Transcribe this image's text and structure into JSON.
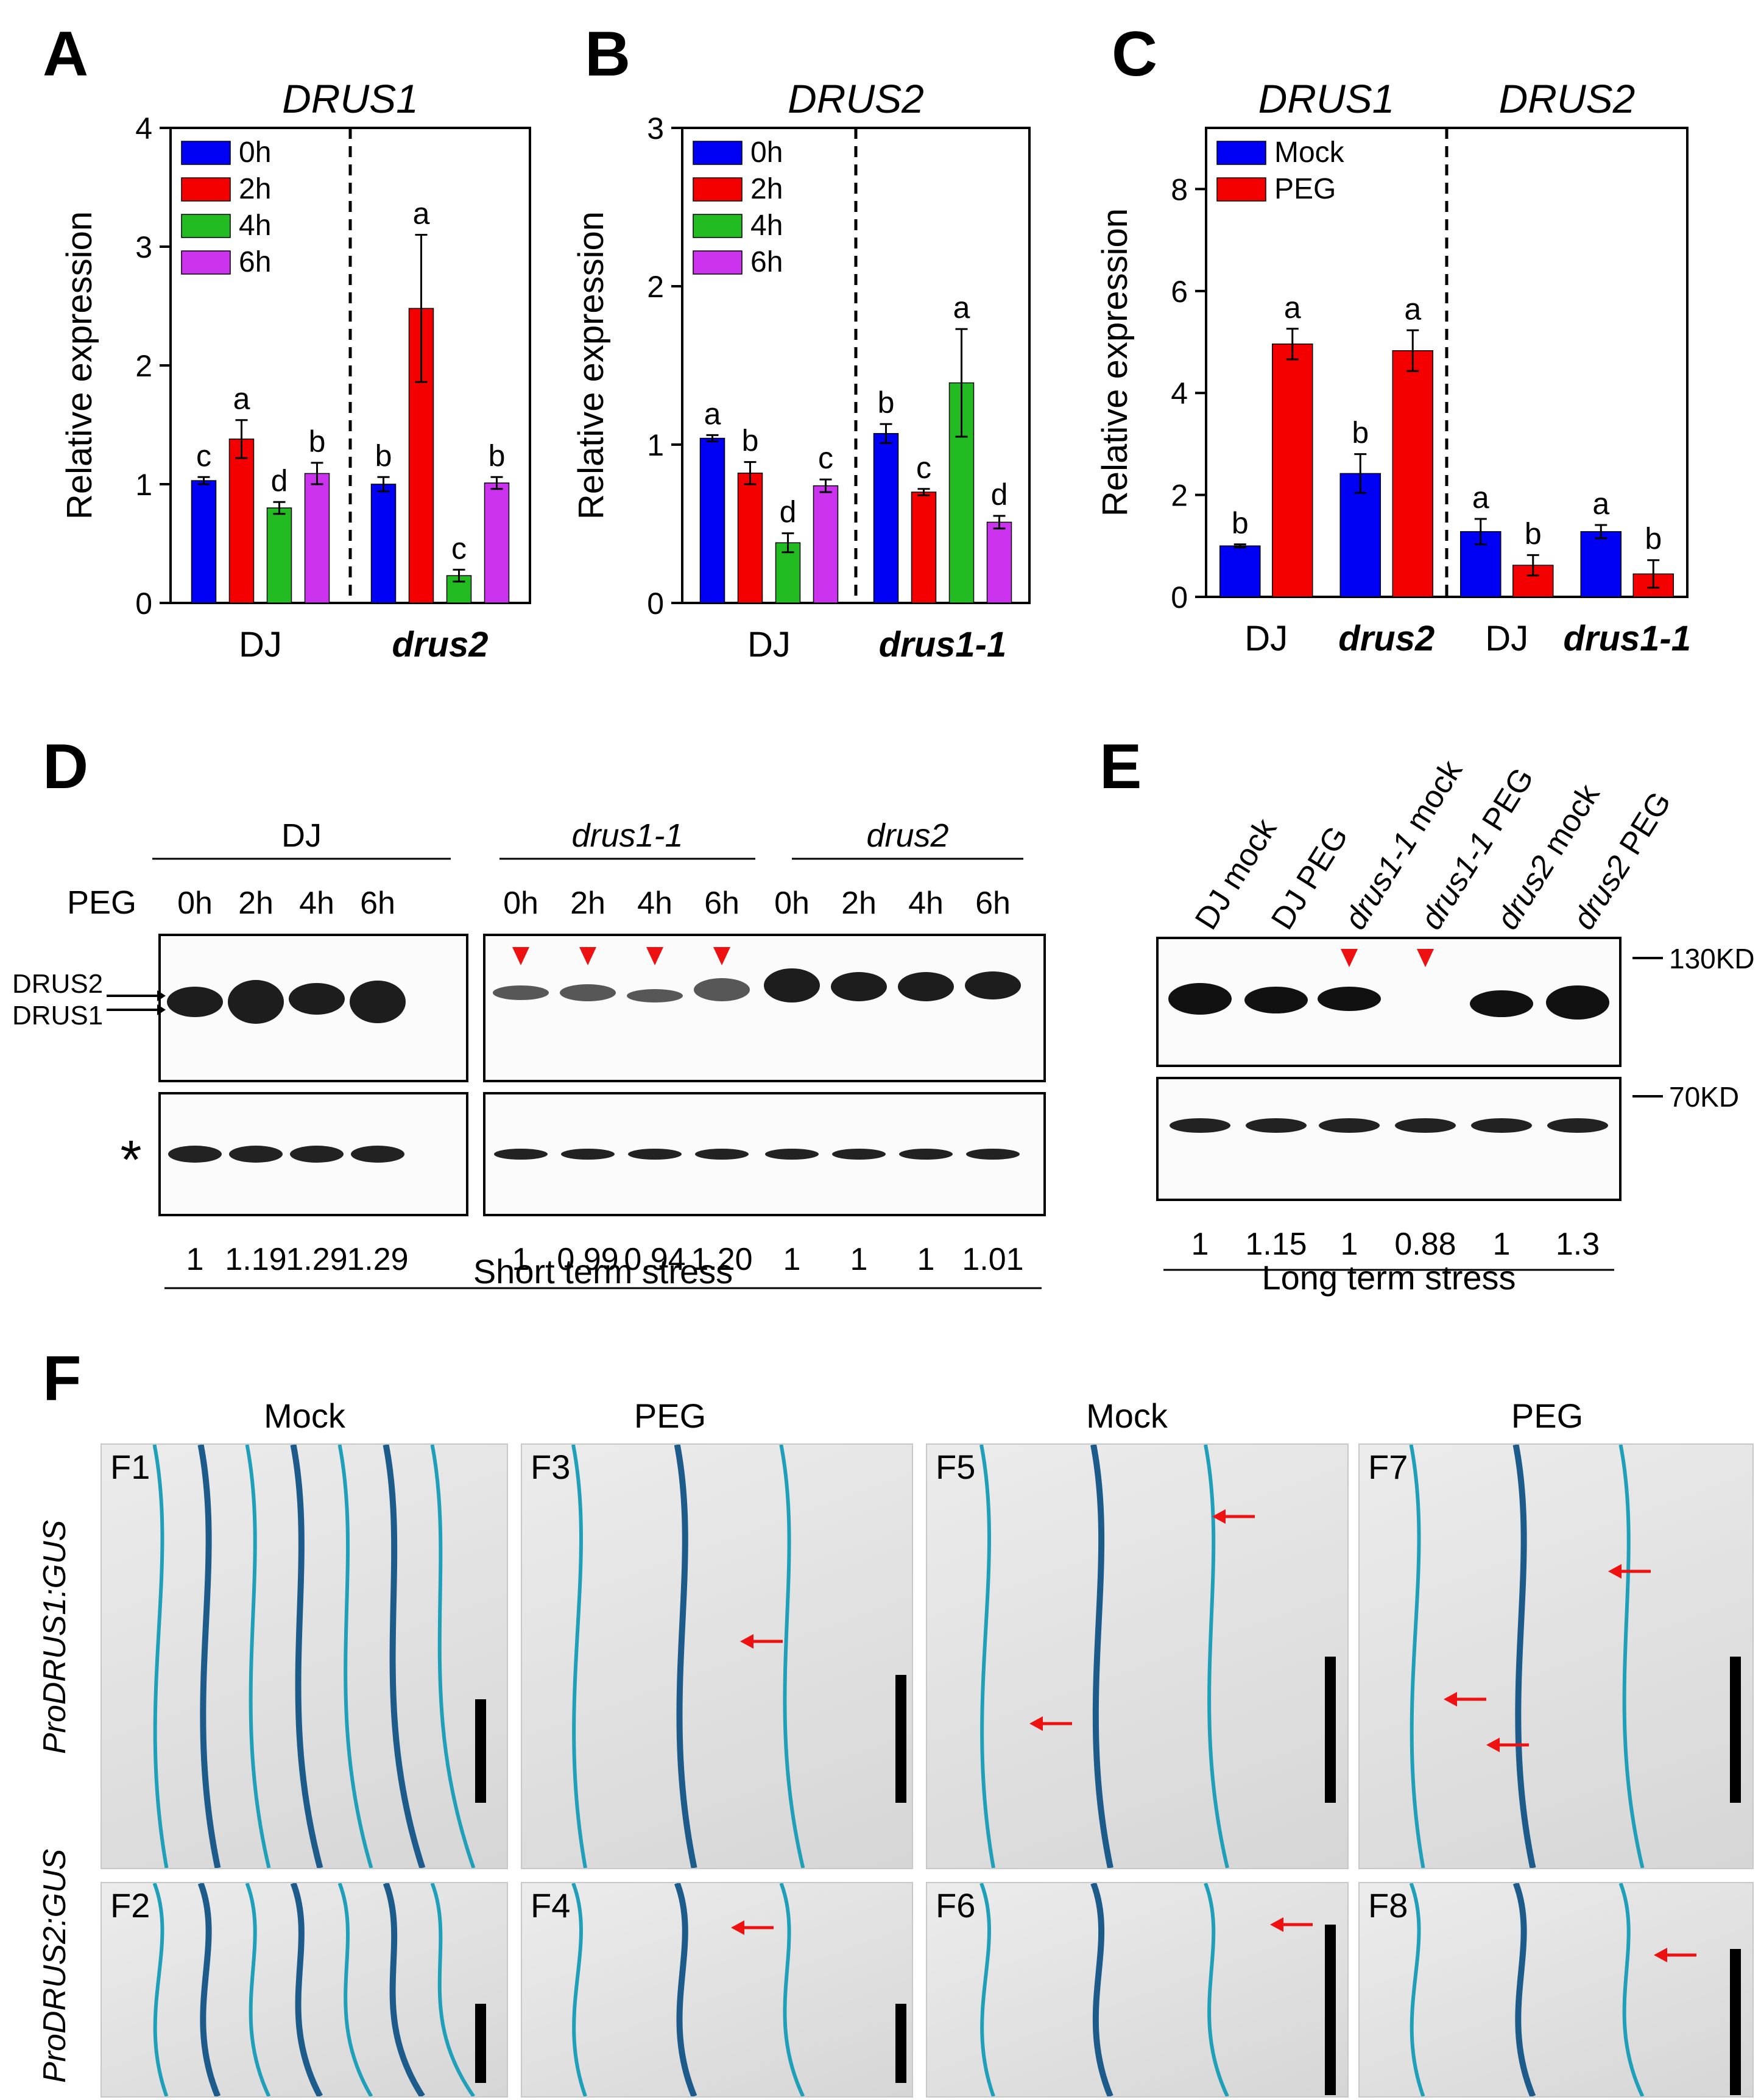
{
  "colors": {
    "blue": "#0000f5",
    "red": "#f50000",
    "green": "#22bb22",
    "magenta": "#cc33ee",
    "arrow_red": "#ee1111",
    "gus_blue": "#1f9fb8"
  },
  "panel_letters": {
    "a": "A",
    "b": "B",
    "c": "C",
    "d": "D",
    "e": "E",
    "f": "F"
  },
  "chart_data": [
    {
      "id": "A",
      "type": "bar",
      "title": "DRUS1",
      "ylabel": "Relative expression",
      "xlabel": "",
      "ylim": [
        0,
        4
      ],
      "yticks": [
        "0",
        "1",
        "2",
        "3",
        "4"
      ],
      "groups": [
        "DJ",
        "drus2"
      ],
      "group_italic": [
        false,
        true
      ],
      "legend": [
        "0h",
        "2h",
        "4h",
        "6h"
      ],
      "legend_position": "top-left",
      "series": [
        {
          "name": "0h",
          "values": [
            1.03,
            1.0
          ],
          "errors": [
            0.03,
            0.06
          ],
          "letters": [
            "c",
            "b"
          ]
        },
        {
          "name": "2h",
          "values": [
            1.38,
            2.48
          ],
          "errors": [
            0.16,
            0.62
          ],
          "letters": [
            "a",
            "a"
          ]
        },
        {
          "name": "4h",
          "values": [
            0.8,
            0.23
          ],
          "errors": [
            0.05,
            0.05
          ],
          "letters": [
            "d",
            "c"
          ]
        },
        {
          "name": "6h",
          "values": [
            1.09,
            1.01
          ],
          "errors": [
            0.09,
            0.05
          ],
          "letters": [
            "b",
            "b"
          ]
        }
      ]
    },
    {
      "id": "B",
      "type": "bar",
      "title": "DRUS2",
      "ylabel": "Relative expression",
      "xlabel": "",
      "ylim": [
        0,
        3
      ],
      "yticks": [
        "0",
        "1",
        "2",
        "3"
      ],
      "groups": [
        "DJ",
        "drus1-1"
      ],
      "group_italic": [
        false,
        true
      ],
      "legend": [
        "0h",
        "2h",
        "4h",
        "6h"
      ],
      "legend_position": "top-left",
      "series": [
        {
          "name": "0h",
          "values": [
            1.04,
            1.07
          ],
          "errors": [
            0.02,
            0.06
          ],
          "letters": [
            "a",
            "b"
          ]
        },
        {
          "name": "2h",
          "values": [
            0.82,
            0.7
          ],
          "errors": [
            0.07,
            0.02
          ],
          "letters": [
            "b",
            "c"
          ]
        },
        {
          "name": "4h",
          "values": [
            0.38,
            1.39
          ],
          "errors": [
            0.06,
            0.34
          ],
          "letters": [
            "d",
            "a"
          ]
        },
        {
          "name": "6h",
          "values": [
            0.74,
            0.51
          ],
          "errors": [
            0.04,
            0.04
          ],
          "letters": [
            "c",
            "d"
          ]
        }
      ]
    },
    {
      "id": "C",
      "type": "bar",
      "titles": [
        "DRUS1",
        "DRUS2"
      ],
      "ylabel": "Relative expression",
      "xlabel": "",
      "ylim": [
        0,
        9.2
      ],
      "yticks": [
        "0",
        "2",
        "4",
        "6",
        "8"
      ],
      "groups": [
        "DJ",
        "drus2",
        "DJ",
        "drus1-1"
      ],
      "group_italic": [
        false,
        true,
        false,
        true
      ],
      "legend": [
        "Mock",
        "PEG"
      ],
      "legend_position": "top-left",
      "series": [
        {
          "name": "Mock",
          "values": [
            1.0,
            2.42,
            1.28,
            1.28
          ],
          "errors": [
            0.03,
            0.38,
            0.25,
            0.13
          ],
          "letters": [
            "b",
            "b",
            "a",
            "a"
          ]
        },
        {
          "name": "PEG",
          "values": [
            4.96,
            4.83,
            0.62,
            0.45
          ],
          "errors": [
            0.3,
            0.4,
            0.2,
            0.27
          ],
          "letters": [
            "a",
            "a",
            "b",
            "b"
          ]
        }
      ]
    }
  ],
  "blot_d": {
    "peg_label": "PEG",
    "groups": [
      "DJ",
      "drus1-1",
      "drus2"
    ],
    "lanes": [
      "0h",
      "2h",
      "4h",
      "6h",
      "0h",
      "2h",
      "4h",
      "6h",
      "0h",
      "2h",
      "4h",
      "6h"
    ],
    "band_labels": [
      "DRUS2",
      "DRUS1"
    ],
    "loading_marker": "*",
    "quant": [
      "1",
      "1.19",
      "1.29",
      "1.29",
      "1",
      "0.99",
      "0.94",
      "1.20",
      "1",
      "1",
      "1",
      "1.01"
    ],
    "caption": "Short term stress"
  },
  "blot_e": {
    "lanes": [
      "DJ mock",
      "DJ PEG",
      "drus1-1 mock",
      "drus1-1 PEG",
      "drus2 mock",
      "drus2 PEG"
    ],
    "markers": [
      "130KD",
      "70KD"
    ],
    "quant": [
      "1",
      "1.15",
      "1",
      "0.88",
      "1",
      "1.3"
    ],
    "caption": "Long term stress"
  },
  "panel_f": {
    "headers": [
      "Mock",
      "PEG",
      "Mock",
      "PEG"
    ],
    "row_labels": [
      "ProDRUS1:GUS",
      "ProDRUS2:GUS"
    ],
    "photos": [
      {
        "label": "F1",
        "arrow_count": 0
      },
      {
        "label": "F3",
        "arrow_count": 1
      },
      {
        "label": "F5",
        "arrow_count": 2
      },
      {
        "label": "F7",
        "arrow_count": 3
      },
      {
        "label": "F2",
        "arrow_count": 0
      },
      {
        "label": "F4",
        "arrow_count": 1
      },
      {
        "label": "F6",
        "arrow_count": 1
      },
      {
        "label": "F8",
        "arrow_count": 1
      }
    ]
  }
}
